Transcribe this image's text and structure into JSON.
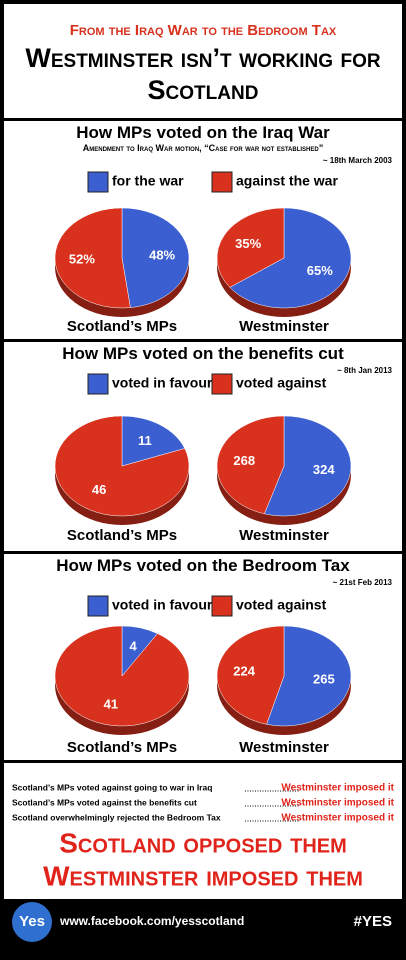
{
  "header": {
    "kicker": "From the Iraq War to the Bedroom Tax",
    "title": "Westminster isn’t working for Scotland"
  },
  "sections": [
    {
      "title": "How MPs voted on the Iraq War",
      "subtitle": "Amendment to Iraq War motion, “Case for war not established”",
      "date": "~ 18th March 2003"
    },
    {
      "title": "How MPs voted on the benefits cut",
      "date": "~ 8th Jan 2013"
    },
    {
      "title": "How MPs voted on the Bedroom Tax",
      "date": "~ 21st Feb 2013"
    }
  ],
  "chart_data": [
    {
      "type": "pie",
      "title": "Scotland’s MPs",
      "categories": [
        "for the war",
        "against the war"
      ],
      "values": [
        48,
        52
      ],
      "value_labels": [
        "48%",
        "52%"
      ],
      "colors": [
        "#3b5fd0",
        "#d8321e"
      ]
    },
    {
      "type": "pie",
      "title": "Westminster",
      "categories": [
        "for the war",
        "against the war"
      ],
      "values": [
        65,
        35
      ],
      "value_labels": [
        "65%",
        "35%"
      ],
      "colors": [
        "#3b5fd0",
        "#d8321e"
      ]
    },
    {
      "type": "pie",
      "title": "Scotland’s MPs",
      "categories": [
        "voted in favour",
        "voted against"
      ],
      "values": [
        11,
        46
      ],
      "colors": [
        "#3b5fd0",
        "#d8321e"
      ]
    },
    {
      "type": "pie",
      "title": "Westminster",
      "categories": [
        "voted in favour",
        "voted against"
      ],
      "values": [
        324,
        268
      ],
      "colors": [
        "#3b5fd0",
        "#d8321e"
      ]
    },
    {
      "type": "pie",
      "title": "Scotland’s MPs",
      "categories": [
        "voted in favour",
        "voted against"
      ],
      "values": [
        4,
        41
      ],
      "colors": [
        "#3b5fd0",
        "#d8321e"
      ]
    },
    {
      "type": "pie",
      "title": "Westminster",
      "categories": [
        "voted in favour",
        "voted against"
      ],
      "values": [
        265,
        224
      ],
      "colors": [
        "#3b5fd0",
        "#d8321e"
      ]
    }
  ],
  "footer": {
    "statements": [
      {
        "text": "Scotland’s MPs voted against going to war in Iraq",
        "verdict": "Westminster imposed it"
      },
      {
        "text": "Scotland’s MPs voted against the benefits cut",
        "verdict": "Westminster imposed it"
      },
      {
        "text": "Scotland overwhelmingly rejected the Bedroom Tax",
        "verdict": "Westminster imposed it"
      }
    ],
    "slogan": [
      "Scotland opposed them",
      "Westminster imposed them"
    ],
    "logo": "Yes",
    "url": "www.facebook.com/yesscotland",
    "hashtag": "#YES"
  }
}
